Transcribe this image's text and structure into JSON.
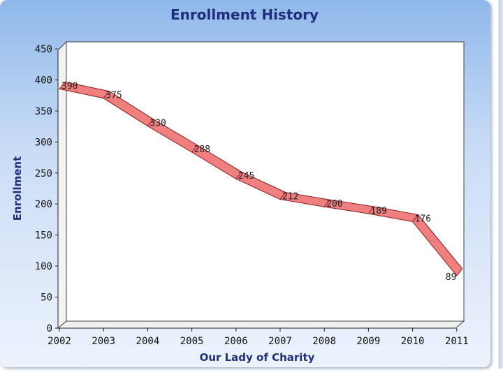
{
  "chart_data": {
    "type": "line",
    "title": "Enrollment History",
    "xlabel": "Our Lady of Charity",
    "ylabel": "Enrollment",
    "categories": [
      "2002",
      "2003",
      "2004",
      "2005",
      "2006",
      "2007",
      "2008",
      "2009",
      "2010",
      "2011"
    ],
    "series": [
      {
        "name": "Enrollment",
        "values": [
          390,
          375,
          330,
          288,
          245,
          212,
          200,
          189,
          176,
          89
        ],
        "labels": [
          "390",
          "375",
          "330",
          "288",
          "245",
          "212",
          "200",
          "189",
          "176",
          "89"
        ]
      }
    ],
    "ylim": [
      0,
      450
    ],
    "yticks": [
      "0",
      "50",
      "100",
      "150",
      "200",
      "250",
      "300",
      "350",
      "400",
      "450"
    ],
    "grid": false,
    "colors": {
      "line_fill": "#f08080",
      "line_stroke": "#8b1a1a",
      "title": "#1f2f7d",
      "axis_title": "#1f2f7d",
      "background_top": "#8fb8ea",
      "plot_bg": "#ffffff"
    }
  }
}
